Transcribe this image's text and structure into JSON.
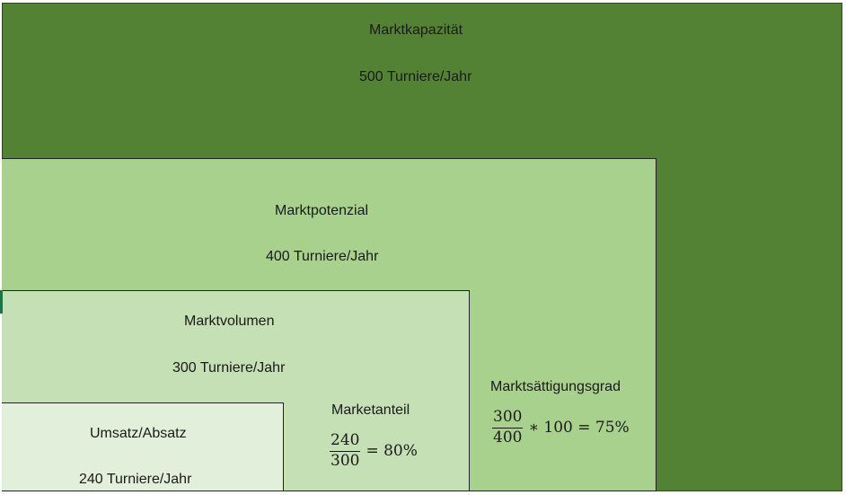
{
  "market_capacity": {
    "title": "Marktkapazität",
    "value": "500 Turniere/Jahr"
  },
  "market_potential": {
    "title": "Marktpotenzial",
    "value": "400 Turniere/Jahr"
  },
  "market_volume": {
    "title": "Marktvolumen",
    "value": "300 Turniere/Jahr"
  },
  "sales": {
    "title": "Umsatz/Absatz",
    "value": "240 Turniere/Jahr"
  },
  "market_share": {
    "title": "Marketanteil",
    "numerator": "240",
    "denominator": "300",
    "result": "= 80%"
  },
  "saturation": {
    "title": "Marktsättigungsgrad",
    "numerator": "300",
    "denominator": "400",
    "result": "∗ 100 = 75%"
  },
  "colors": {
    "capacity": "#548235",
    "potential": "#a9d18e",
    "volume": "#c5e0b4",
    "sales": "#e2efda"
  }
}
